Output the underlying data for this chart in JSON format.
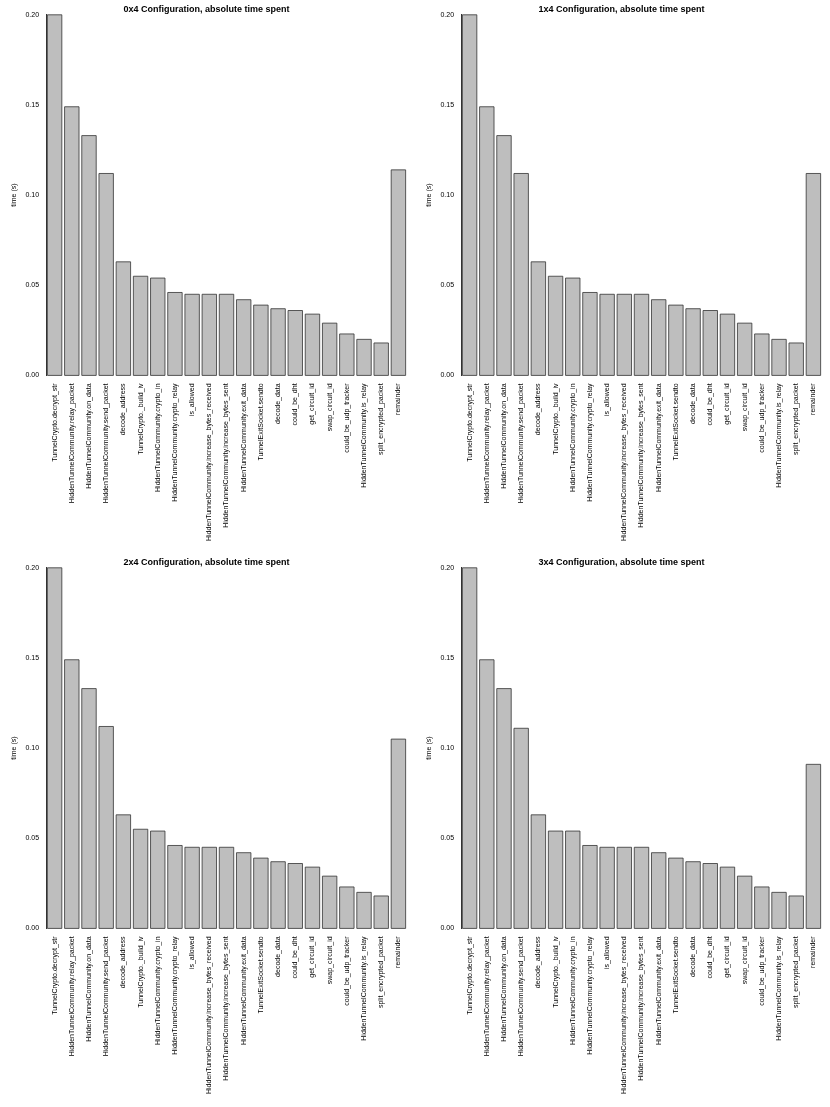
{
  "chart_data": [
    {
      "type": "bar",
      "title": "0x4 Configuration, absolute time spent",
      "ylabel": "time (s)",
      "categories": [
        "TunnelCrypto.decrypt_str",
        "HiddenTunnelCommunity.relay_packet",
        "HiddenTunnelCommunity.on_data",
        "HiddenTunnelCommunity.send_packet",
        "decode_address",
        "TunnelCrypto._build_iv",
        "HiddenTunnelCommunity.crypto_in",
        "HiddenTunnelCommunity.crypto_relay",
        "is_allowed",
        "HiddenTunnelCommunity.increase_bytes_received",
        "HiddenTunnelCommunity.increase_bytes_sent",
        "HiddenTunnelCommunity.exit_data",
        "TunnelExitSocket.sendto",
        "decode_data",
        "could_be_dht",
        "get_circuit_id",
        "swap_circuit_id",
        "could_be_udp_tracker",
        "HiddenTunnelCommunity.is_relay",
        "split_encrypted_packet",
        "remainder"
      ],
      "values": [
        0.2,
        0.149,
        0.133,
        0.112,
        0.063,
        0.055,
        0.054,
        0.046,
        0.045,
        0.045,
        0.045,
        0.042,
        0.039,
        0.037,
        0.036,
        0.034,
        0.029,
        0.023,
        0.02,
        0.018,
        0.114
      ],
      "color": "#bebebe",
      "ylim": [
        0,
        0.2
      ],
      "yticks": [
        {
          "value": 0,
          "label": "0.00"
        },
        {
          "value": 0.05,
          "label": "0.05"
        },
        {
          "value": 0.1,
          "label": "0.10"
        },
        {
          "value": 0.15,
          "label": "0.15"
        },
        {
          "value": 0.2,
          "label": "0.20"
        }
      ],
      "grid": false
    },
    {
      "type": "bar",
      "title": "1x4 Configuration, absolute time spent",
      "ylabel": "time (s)",
      "categories": [
        "TunnelCrypto.decrypt_str",
        "HiddenTunnelCommunity.relay_packet",
        "HiddenTunnelCommunity.on_data",
        "HiddenTunnelCommunity.send_packet",
        "decode_address",
        "TunnelCrypto._build_iv",
        "HiddenTunnelCommunity.crypto_in",
        "HiddenTunnelCommunity.crypto_relay",
        "is_allowed",
        "HiddenTunnelCommunity.increase_bytes_received",
        "HiddenTunnelCommunity.increase_bytes_sent",
        "HiddenTunnelCommunity.exit_data",
        "TunnelExitSocket.sendto",
        "decode_data",
        "could_be_dht",
        "get_circuit_id",
        "swap_circuit_id",
        "could_be_udp_tracker",
        "HiddenTunnelCommunity.is_relay",
        "split_encrypted_packet",
        "remainder"
      ],
      "values": [
        0.2,
        0.149,
        0.133,
        0.112,
        0.063,
        0.055,
        0.054,
        0.046,
        0.045,
        0.045,
        0.045,
        0.042,
        0.039,
        0.037,
        0.036,
        0.034,
        0.029,
        0.023,
        0.02,
        0.018,
        0.112
      ],
      "color": "#bebebe",
      "ylim": [
        0,
        0.2
      ],
      "yticks": [
        {
          "value": 0,
          "label": "0.00"
        },
        {
          "value": 0.05,
          "label": "0.05"
        },
        {
          "value": 0.1,
          "label": "0.10"
        },
        {
          "value": 0.15,
          "label": "0.15"
        },
        {
          "value": 0.2,
          "label": "0.20"
        }
      ],
      "grid": false
    },
    {
      "type": "bar",
      "title": "2x4 Configuration, absolute time spent",
      "ylabel": "time (s)",
      "categories": [
        "TunnelCrypto.decrypt_str",
        "HiddenTunnelCommunity.relay_packet",
        "HiddenTunnelCommunity.on_data",
        "HiddenTunnelCommunity.send_packet",
        "decode_address",
        "TunnelCrypto._build_iv",
        "HiddenTunnelCommunity.crypto_in",
        "HiddenTunnelCommunity.crypto_relay",
        "is_allowed",
        "HiddenTunnelCommunity.increase_bytes_received",
        "HiddenTunnelCommunity.increase_bytes_sent",
        "HiddenTunnelCommunity.exit_data",
        "TunnelExitSocket.sendto",
        "decode_data",
        "could_be_dht",
        "get_circuit_id",
        "swap_circuit_id",
        "could_be_udp_tracker",
        "HiddenTunnelCommunity.is_relay",
        "split_encrypted_packet",
        "remainder"
      ],
      "values": [
        0.2,
        0.149,
        0.133,
        0.112,
        0.063,
        0.055,
        0.054,
        0.046,
        0.045,
        0.045,
        0.045,
        0.042,
        0.039,
        0.037,
        0.036,
        0.034,
        0.029,
        0.023,
        0.02,
        0.018,
        0.105
      ],
      "color": "#bebebe",
      "ylim": [
        0,
        0.2
      ],
      "yticks": [
        {
          "value": 0,
          "label": "0.00"
        },
        {
          "value": 0.05,
          "label": "0.05"
        },
        {
          "value": 0.1,
          "label": "0.10"
        },
        {
          "value": 0.15,
          "label": "0.15"
        },
        {
          "value": 0.2,
          "label": "0.20"
        }
      ],
      "grid": false
    },
    {
      "type": "bar",
      "title": "3x4 Configuration, absolute time spent",
      "ylabel": "time (s)",
      "categories": [
        "TunnelCrypto.decrypt_str",
        "HiddenTunnelCommunity.relay_packet",
        "HiddenTunnelCommunity.on_data",
        "HiddenTunnelCommunity.send_packet",
        "decode_address",
        "TunnelCrypto._build_iv",
        "HiddenTunnelCommunity.crypto_in",
        "HiddenTunnelCommunity.crypto_relay",
        "is_allowed",
        "HiddenTunnelCommunity.increase_bytes_received",
        "HiddenTunnelCommunity.increase_bytes_sent",
        "HiddenTunnelCommunity.exit_data",
        "TunnelExitSocket.sendto",
        "decode_data",
        "could_be_dht",
        "get_circuit_id",
        "swap_circuit_id",
        "could_be_udp_tracker",
        "HiddenTunnelCommunity.is_relay",
        "split_encrypted_packet",
        "remainder"
      ],
      "values": [
        0.2,
        0.149,
        0.133,
        0.111,
        0.063,
        0.054,
        0.054,
        0.046,
        0.045,
        0.045,
        0.045,
        0.042,
        0.039,
        0.037,
        0.036,
        0.034,
        0.029,
        0.023,
        0.02,
        0.018,
        0.091
      ],
      "color": "#bebebe",
      "ylim": [
        0,
        0.2
      ],
      "yticks": [
        {
          "value": 0,
          "label": "0.00"
        },
        {
          "value": 0.05,
          "label": "0.05"
        },
        {
          "value": 0.1,
          "label": "0.10"
        },
        {
          "value": 0.15,
          "label": "0.15"
        },
        {
          "value": 0.2,
          "label": "0.20"
        }
      ],
      "grid": false
    }
  ]
}
